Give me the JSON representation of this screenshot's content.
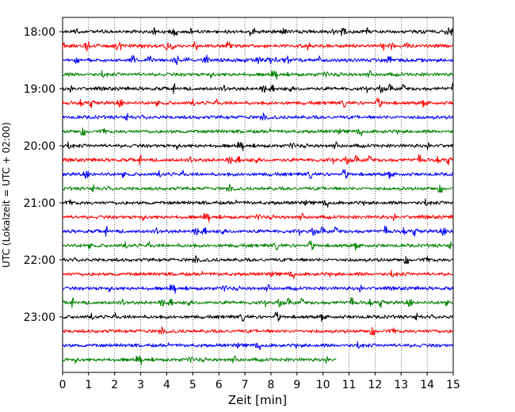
{
  "chart_data": {
    "type": "line",
    "title": "",
    "xlabel": "Zeit  [min]",
    "ylabel": "UTC (Lokalzeit = UTC + 02:00)",
    "xlim": [
      0,
      15
    ],
    "x_ticks": [
      "0",
      "1",
      "2",
      "3",
      "4",
      "5",
      "6",
      "7",
      "8",
      "9",
      "10",
      "11",
      "12",
      "13",
      "14",
      "15"
    ],
    "y_tick_labels": [
      "18:00",
      "19:00",
      "20:00",
      "21:00",
      "22:00",
      "23:00"
    ],
    "grid": "vertical dotted",
    "trace_interval_min": 15,
    "trace_colors": [
      "#000000",
      "#ff0000",
      "#0000ff",
      "#008000"
    ],
    "series": [
      {
        "start": "18:00",
        "end_min": 15
      },
      {
        "start": "18:15",
        "end_min": 15
      },
      {
        "start": "18:30",
        "end_min": 15
      },
      {
        "start": "18:45",
        "end_min": 15
      },
      {
        "start": "19:00",
        "end_min": 15
      },
      {
        "start": "19:15",
        "end_min": 15
      },
      {
        "start": "19:30",
        "end_min": 15
      },
      {
        "start": "19:45",
        "end_min": 15
      },
      {
        "start": "20:00",
        "end_min": 15
      },
      {
        "start": "20:15",
        "end_min": 15
      },
      {
        "start": "20:30",
        "end_min": 15
      },
      {
        "start": "20:45",
        "end_min": 15
      },
      {
        "start": "21:00",
        "end_min": 15
      },
      {
        "start": "21:15",
        "end_min": 15
      },
      {
        "start": "21:30",
        "end_min": 15
      },
      {
        "start": "21:45",
        "end_min": 15
      },
      {
        "start": "22:00",
        "end_min": 15
      },
      {
        "start": "22:15",
        "end_min": 15
      },
      {
        "start": "22:30",
        "end_min": 15
      },
      {
        "start": "22:45",
        "end_min": 15
      },
      {
        "start": "23:00",
        "end_min": 15
      },
      {
        "start": "23:15",
        "end_min": 15
      },
      {
        "start": "23:30",
        "end_min": 15
      },
      {
        "start": "23:45",
        "end_min": 10.5
      }
    ]
  }
}
